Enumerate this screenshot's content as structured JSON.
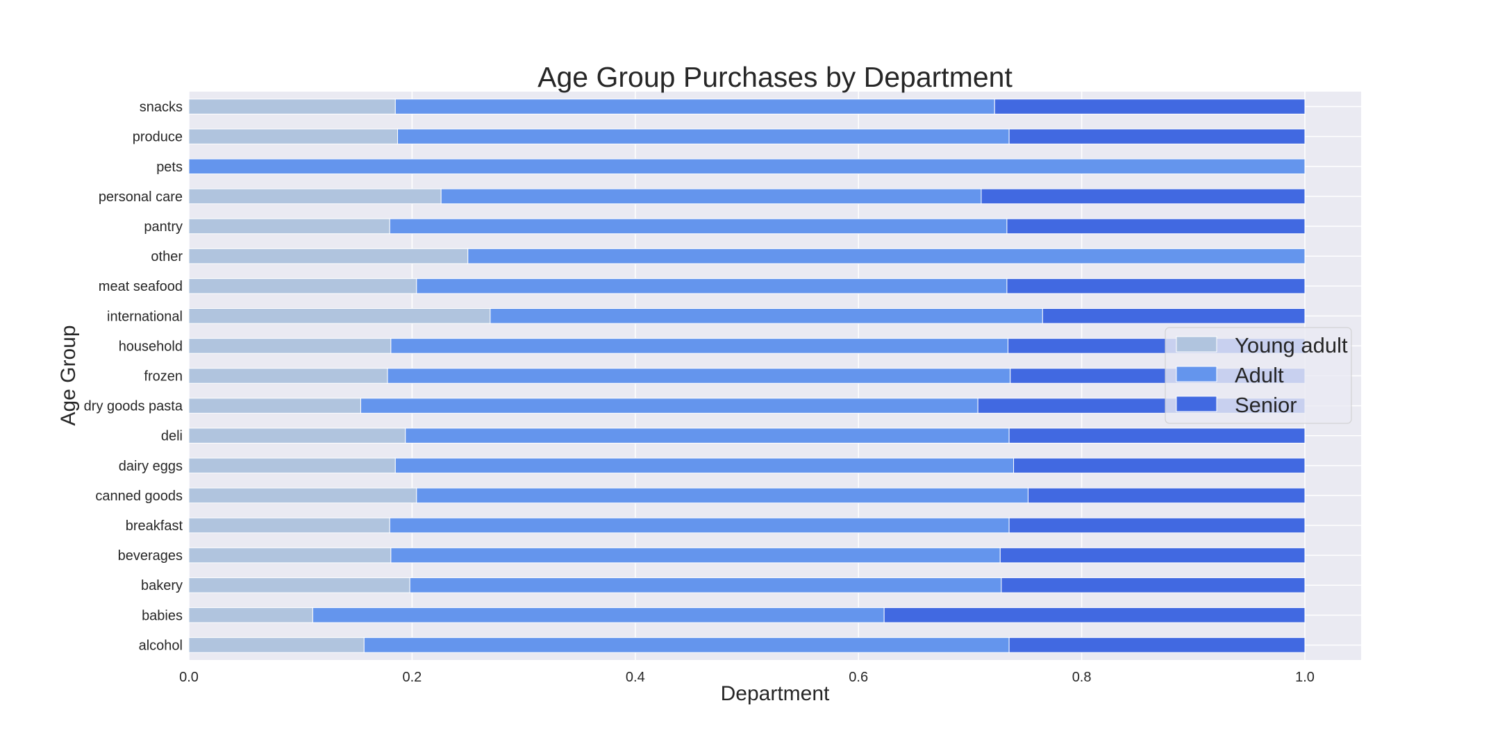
{
  "chart_data": {
    "type": "bar",
    "orientation": "horizontal",
    "stacked": true,
    "title": "Age Group Purchases by Department",
    "xlabel": "Department",
    "ylabel": "Age Group",
    "xlim": [
      0,
      1.05
    ],
    "xticks": [
      "0.0",
      "0.2",
      "0.4",
      "0.6",
      "0.8",
      "1.0"
    ],
    "xtick_values": [
      0,
      0.2,
      0.4,
      0.6,
      0.8,
      1.0
    ],
    "grid": true,
    "legend_position": "center-right",
    "categories": [
      "alcohol",
      "babies",
      "bakery",
      "beverages",
      "breakfast",
      "canned goods",
      "dairy eggs",
      "deli",
      "dry goods pasta",
      "frozen",
      "household",
      "international",
      "meat seafood",
      "other",
      "pantry",
      "personal care",
      "pets",
      "produce",
      "snacks"
    ],
    "series": [
      {
        "name": "Young adult",
        "color": "#b0c4de",
        "values": [
          0.157,
          0.111,
          0.198,
          0.181,
          0.18,
          0.204,
          0.185,
          0.194,
          0.154,
          0.178,
          0.181,
          0.27,
          0.204,
          0.25,
          0.18,
          0.226,
          0.0,
          0.187,
          0.185
        ]
      },
      {
        "name": "Adult",
        "color": "#6495ed",
        "values": [
          0.578,
          0.512,
          0.53,
          0.546,
          0.555,
          0.548,
          0.554,
          0.541,
          0.553,
          0.558,
          0.553,
          0.495,
          0.529,
          0.75,
          0.553,
          0.484,
          1.0,
          0.548,
          0.537
        ]
      },
      {
        "name": "Senior",
        "color": "#4169e1",
        "values": [
          0.265,
          0.377,
          0.272,
          0.273,
          0.265,
          0.248,
          0.261,
          0.265,
          0.293,
          0.264,
          0.266,
          0.235,
          0.267,
          0.0,
          0.267,
          0.29,
          0.0,
          0.265,
          0.278
        ]
      }
    ],
    "colors": {
      "plot_background": "#eaeaf2",
      "grid": "#ffffff",
      "text": "#262626"
    }
  }
}
